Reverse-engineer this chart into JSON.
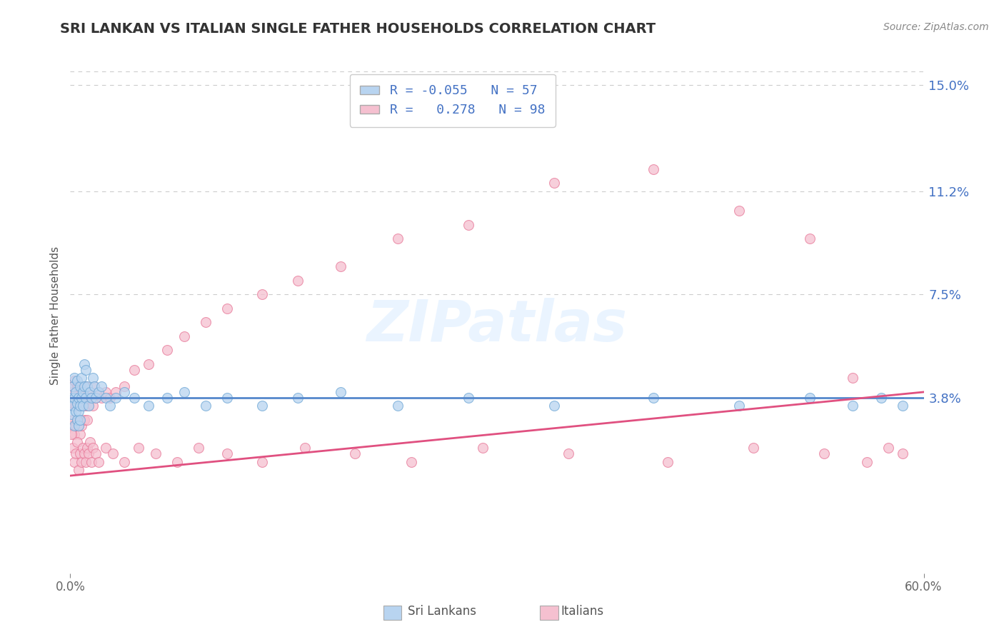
{
  "title": "SRI LANKAN VS ITALIAN SINGLE FATHER HOUSEHOLDS CORRELATION CHART",
  "source": "Source: ZipAtlas.com",
  "ylabel": "Single Father Households",
  "y_tick_labels_right": [
    "15.0%",
    "11.2%",
    "7.5%",
    "3.8%"
  ],
  "y_tick_values_right": [
    0.15,
    0.112,
    0.075,
    0.038
  ],
  "x_min": 0.0,
  "x_max": 0.6,
  "y_min": -0.025,
  "y_max": 0.16,
  "sri_lanka_face": "#b8d4f0",
  "sri_lanka_edge": "#6fa8d6",
  "italian_face": "#f5c0d0",
  "italian_edge": "#e87a9a",
  "sri_lanka_trend_color": "#5588cc",
  "italian_trend_color": "#e05080",
  "background_color": "#ffffff",
  "grid_color": "#cccccc",
  "title_color": "#333333",
  "label_color": "#4472c4",
  "legend_R_sri": "-0.055",
  "legend_N_sri": "57",
  "legend_R_ita": "0.278",
  "legend_N_ita": "98",
  "watermark": "ZIPatlas",
  "sri_lankans_x": [
    0.001,
    0.001,
    0.002,
    0.002,
    0.003,
    0.003,
    0.003,
    0.004,
    0.004,
    0.005,
    0.005,
    0.005,
    0.006,
    0.006,
    0.006,
    0.007,
    0.007,
    0.007,
    0.008,
    0.008,
    0.009,
    0.009,
    0.01,
    0.01,
    0.011,
    0.011,
    0.012,
    0.013,
    0.014,
    0.015,
    0.016,
    0.017,
    0.018,
    0.02,
    0.022,
    0.025,
    0.028,
    0.032,
    0.038,
    0.045,
    0.055,
    0.068,
    0.08,
    0.095,
    0.11,
    0.135,
    0.16,
    0.19,
    0.23,
    0.28,
    0.34,
    0.41,
    0.47,
    0.52,
    0.55,
    0.57,
    0.585
  ],
  "sri_lankans_y": [
    0.038,
    0.032,
    0.042,
    0.035,
    0.028,
    0.045,
    0.038,
    0.033,
    0.04,
    0.036,
    0.03,
    0.044,
    0.038,
    0.033,
    0.028,
    0.042,
    0.035,
    0.03,
    0.038,
    0.045,
    0.04,
    0.035,
    0.05,
    0.042,
    0.048,
    0.038,
    0.042,
    0.035,
    0.04,
    0.038,
    0.045,
    0.042,
    0.038,
    0.04,
    0.042,
    0.038,
    0.035,
    0.038,
    0.04,
    0.038,
    0.035,
    0.038,
    0.04,
    0.035,
    0.038,
    0.035,
    0.038,
    0.04,
    0.035,
    0.038,
    0.035,
    0.038,
    0.035,
    0.038,
    0.035,
    0.038,
    0.035
  ],
  "italians_x": [
    0.001,
    0.001,
    0.001,
    0.002,
    0.002,
    0.002,
    0.003,
    0.003,
    0.003,
    0.004,
    0.004,
    0.004,
    0.005,
    0.005,
    0.005,
    0.006,
    0.006,
    0.006,
    0.007,
    0.007,
    0.007,
    0.008,
    0.008,
    0.008,
    0.009,
    0.009,
    0.01,
    0.01,
    0.011,
    0.011,
    0.012,
    0.012,
    0.013,
    0.014,
    0.015,
    0.016,
    0.017,
    0.018,
    0.02,
    0.022,
    0.025,
    0.028,
    0.032,
    0.038,
    0.045,
    0.055,
    0.068,
    0.08,
    0.095,
    0.11,
    0.135,
    0.16,
    0.19,
    0.23,
    0.28,
    0.34,
    0.41,
    0.47,
    0.52,
    0.55,
    0.001,
    0.002,
    0.003,
    0.004,
    0.005,
    0.006,
    0.007,
    0.008,
    0.009,
    0.01,
    0.011,
    0.012,
    0.013,
    0.014,
    0.015,
    0.016,
    0.018,
    0.02,
    0.025,
    0.03,
    0.038,
    0.048,
    0.06,
    0.075,
    0.09,
    0.11,
    0.135,
    0.165,
    0.2,
    0.24,
    0.29,
    0.35,
    0.42,
    0.48,
    0.53,
    0.56,
    0.575,
    0.585
  ],
  "italians_y": [
    0.04,
    0.035,
    0.028,
    0.042,
    0.036,
    0.03,
    0.038,
    0.044,
    0.025,
    0.04,
    0.035,
    0.028,
    0.042,
    0.038,
    0.03,
    0.035,
    0.028,
    0.042,
    0.038,
    0.03,
    0.025,
    0.042,
    0.035,
    0.028,
    0.04,
    0.035,
    0.038,
    0.03,
    0.042,
    0.035,
    0.038,
    0.03,
    0.035,
    0.04,
    0.038,
    0.035,
    0.042,
    0.038,
    0.04,
    0.038,
    0.04,
    0.038,
    0.04,
    0.042,
    0.048,
    0.05,
    0.055,
    0.06,
    0.065,
    0.07,
    0.075,
    0.08,
    0.085,
    0.095,
    0.1,
    0.115,
    0.12,
    0.105,
    0.095,
    0.045,
    0.025,
    0.02,
    0.015,
    0.018,
    0.022,
    0.012,
    0.018,
    0.015,
    0.02,
    0.018,
    0.015,
    0.02,
    0.018,
    0.022,
    0.015,
    0.02,
    0.018,
    0.015,
    0.02,
    0.018,
    0.015,
    0.02,
    0.018,
    0.015,
    0.02,
    0.018,
    0.015,
    0.02,
    0.018,
    0.015,
    0.02,
    0.018,
    0.015,
    0.02,
    0.018,
    0.015,
    0.02,
    0.018
  ],
  "sri_trend_start_y": 0.038,
  "sri_trend_end_y": 0.038,
  "ita_trend_start_y": 0.01,
  "ita_trend_end_y": 0.04
}
